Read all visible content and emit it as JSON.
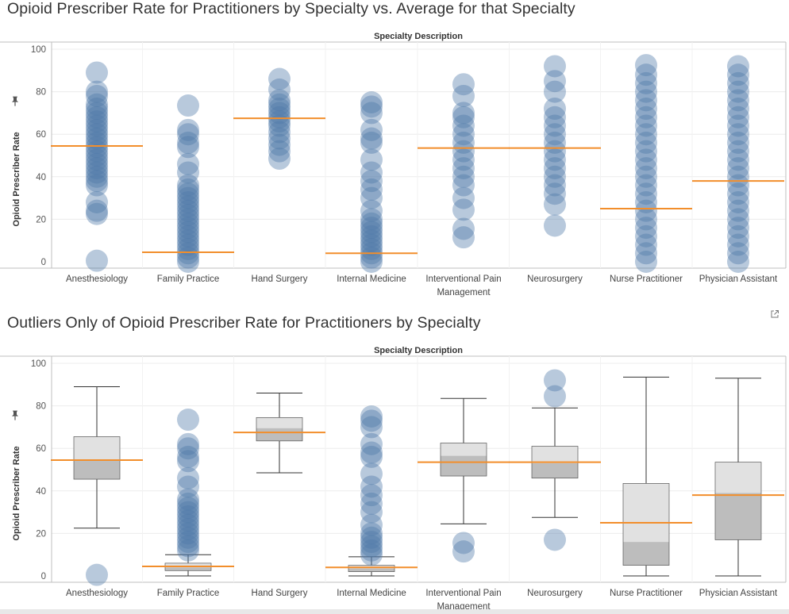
{
  "colors": {
    "mark": "#4e79a7",
    "average_line": "#f28e2b",
    "box_upper": "#e1e1e1",
    "box_lower": "#bdbdbd",
    "grid": "#ececec",
    "axis": "#bfbfbf"
  },
  "icons": {
    "pin": "pin-icon",
    "external": "external-link-icon"
  },
  "chart_data": [
    {
      "type": "scatter",
      "title": "Opioid Prescriber Rate for Practitioners by Specialty vs. Average for that Specialty",
      "xlabel": "Specialty Description",
      "ylabel": "Opioid Prescriber Rate",
      "ylim": [
        0,
        100
      ],
      "yticks": [
        0,
        20,
        40,
        60,
        80,
        100
      ],
      "grid": true,
      "categories": [
        "Anesthesiology",
        "Family Practice",
        "Hand Surgery",
        "Internal Medicine",
        "Interventional Pain Management",
        "Neurosurgery",
        "Nurse Practitioner",
        "Physician Assistant"
      ],
      "averages": [
        54.5,
        4.5,
        67.5,
        4,
        53.5,
        53.5,
        25,
        38
      ],
      "points": [
        [
          0.5,
          22.5,
          24,
          28,
          36,
          38,
          40,
          42,
          44,
          46,
          48,
          50,
          52,
          54,
          56,
          58,
          60,
          62,
          64,
          66,
          68,
          70,
          72,
          74,
          78,
          80,
          89
        ],
        [
          0,
          2,
          4,
          6,
          8,
          10,
          12,
          14,
          16,
          18,
          20,
          22,
          24,
          26,
          28,
          30,
          32,
          34,
          36,
          42,
          46,
          54,
          56,
          60,
          62,
          73.5
        ],
        [
          48.5,
          52,
          55,
          58,
          61,
          64,
          66,
          68,
          70,
          72,
          74,
          76,
          81,
          86
        ],
        [
          0,
          2,
          4,
          6,
          8,
          10,
          12,
          14,
          16,
          18,
          20,
          24,
          30,
          34,
          38,
          42,
          48,
          56,
          58,
          62,
          70,
          73,
          75
        ],
        [
          11.5,
          15.5,
          24.5,
          30,
          36,
          40,
          44,
          48,
          52,
          56,
          60,
          64,
          68,
          70,
          78,
          83.5
        ],
        [
          17,
          27,
          32,
          36,
          40,
          44,
          48,
          52,
          56,
          60,
          64,
          68,
          72,
          80,
          85,
          92
        ],
        [
          0,
          4,
          8,
          12,
          16,
          20,
          24,
          28,
          32,
          36,
          40,
          44,
          48,
          52,
          56,
          60,
          64,
          68,
          72,
          76,
          80,
          84,
          88,
          92.5
        ],
        [
          0,
          4,
          8,
          12,
          16,
          20,
          24,
          28,
          32,
          36,
          40,
          44,
          48,
          52,
          56,
          60,
          64,
          68,
          72,
          76,
          80,
          84,
          88,
          92
        ]
      ]
    },
    {
      "type": "box",
      "title": "Outliers Only of Opioid Prescriber Rate for Practitioners by Specialty",
      "xlabel": "Specialty Description",
      "ylabel": "Opioid Prescriber Rate",
      "ylim": [
        0,
        100
      ],
      "yticks": [
        0,
        20,
        40,
        60,
        80,
        100
      ],
      "grid": true,
      "categories": [
        "Anesthesiology",
        "Family Practice",
        "Hand Surgery",
        "Internal Medicine",
        "Interventional Pain Management",
        "Neurosurgery",
        "Nurse Practitioner",
        "Physician Assistant"
      ],
      "averages": [
        54.5,
        4.5,
        67.5,
        4,
        53.5,
        53.5,
        25,
        38
      ],
      "boxes": [
        {
          "min": 22.5,
          "q1": 45.5,
          "median": 54.5,
          "q3": 65.5,
          "max": 89
        },
        {
          "min": 0,
          "q1": 2.5,
          "median": 4,
          "q3": 6,
          "max": 10
        },
        {
          "min": 48.5,
          "q1": 63.5,
          "median": 69.5,
          "q3": 74.5,
          "max": 86
        },
        {
          "min": 0,
          "q1": 2,
          "median": 3.5,
          "q3": 5,
          "max": 9
        },
        {
          "min": 24.5,
          "q1": 47,
          "median": 56.5,
          "q3": 62.5,
          "max": 83.5
        },
        {
          "min": 27.5,
          "q1": 46,
          "median": 53,
          "q3": 61,
          "max": 79
        },
        {
          "min": 0,
          "q1": 5,
          "median": 16,
          "q3": 43.5,
          "max": 93.5
        },
        {
          "min": 0,
          "q1": 17,
          "median": 39,
          "q3": 53.5,
          "max": 93
        }
      ],
      "outliers": [
        [
          0.5
        ],
        [
          12,
          14,
          16,
          18,
          20,
          22,
          24,
          26,
          28,
          30,
          32,
          34,
          36,
          42,
          46,
          54,
          56,
          60,
          62,
          73.5
        ],
        [],
        [
          10,
          12,
          14,
          16,
          18,
          20,
          24,
          30,
          34,
          38,
          42,
          48,
          56,
          58,
          62,
          70,
          73,
          75
        ],
        [
          11.5,
          15.5
        ],
        [
          17,
          84.5,
          92
        ],
        [],
        []
      ]
    }
  ]
}
